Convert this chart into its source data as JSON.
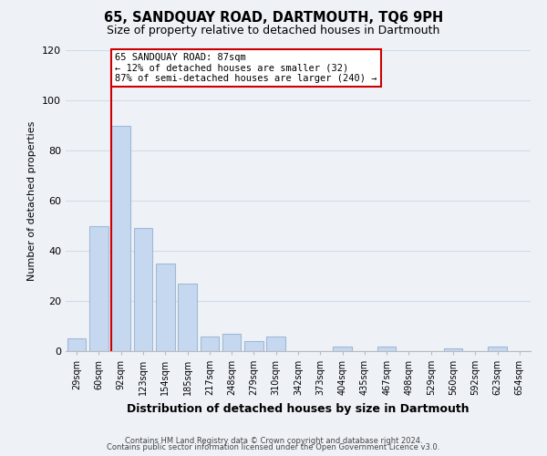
{
  "title": "65, SANDQUAY ROAD, DARTMOUTH, TQ6 9PH",
  "subtitle": "Size of property relative to detached houses in Dartmouth",
  "xlabel": "Distribution of detached houses by size in Dartmouth",
  "ylabel": "Number of detached properties",
  "bin_labels": [
    "29sqm",
    "60sqm",
    "92sqm",
    "123sqm",
    "154sqm",
    "185sqm",
    "217sqm",
    "248sqm",
    "279sqm",
    "310sqm",
    "342sqm",
    "373sqm",
    "404sqm",
    "435sqm",
    "467sqm",
    "498sqm",
    "529sqm",
    "560sqm",
    "592sqm",
    "623sqm",
    "654sqm"
  ],
  "bar_heights": [
    5,
    50,
    90,
    49,
    35,
    27,
    6,
    7,
    4,
    6,
    0,
    0,
    2,
    0,
    2,
    0,
    0,
    1,
    0,
    2,
    0
  ],
  "bar_color": "#c5d8f0",
  "bar_edge_color": "#a0b8d8",
  "vline_color": "#cc0000",
  "annotation_text": "65 SANDQUAY ROAD: 87sqm\n← 12% of detached houses are smaller (32)\n87% of semi-detached houses are larger (240) →",
  "annotation_box_color": "#ffffff",
  "annotation_box_edge": "#cc0000",
  "ylim": [
    0,
    120
  ],
  "yticks": [
    0,
    20,
    40,
    60,
    80,
    100,
    120
  ],
  "grid_color": "#d0dce8",
  "footer_line1": "Contains HM Land Registry data © Crown copyright and database right 2024.",
  "footer_line2": "Contains public sector information licensed under the Open Government Licence v3.0.",
  "bg_color": "#eef2f7",
  "plot_bg_color": "#eef2f7"
}
